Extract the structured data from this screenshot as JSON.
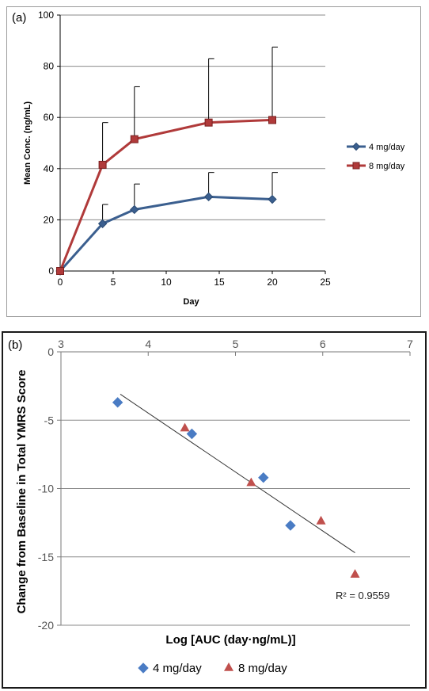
{
  "chart_data": [
    {
      "type": "line",
      "panel_label": "(a)",
      "title": "",
      "xlabel": "Day",
      "ylabel": "Mean Conc. (ng/mL)",
      "xlim": [
        0,
        25
      ],
      "ylim": [
        0,
        100
      ],
      "xticks": [
        "0",
        "5",
        "10",
        "15",
        "20",
        "25"
      ],
      "yticks": [
        "0",
        "20",
        "40",
        "60",
        "80",
        "100"
      ],
      "grid": "horizontal",
      "legend_position": "right",
      "series": [
        {
          "name": "4 mg/day",
          "marker": "diamond",
          "color": "#3b5f8f",
          "x": [
            0,
            4,
            7,
            14,
            20
          ],
          "y": [
            0,
            18.5,
            24,
            29,
            28
          ],
          "error_upper": [
            0,
            26,
            34,
            38.5,
            38.5
          ]
        },
        {
          "name": "8 mg/day",
          "marker": "square",
          "color": "#b03a3a",
          "x": [
            0,
            4,
            7,
            14,
            20
          ],
          "y": [
            0,
            41.5,
            51.5,
            58,
            59
          ],
          "error_upper": [
            0,
            58,
            72,
            83,
            87.5
          ]
        }
      ]
    },
    {
      "type": "scatter",
      "panel_label": "(b)",
      "title": "",
      "xlabel": "Log [AUC (day·ng/mL)]",
      "ylabel": "Change from Baseline in Total YMRS Score",
      "xlim": [
        3,
        7
      ],
      "ylim": [
        -20,
        0
      ],
      "xticks": [
        "3",
        "4",
        "5",
        "6",
        "7"
      ],
      "yticks": [
        "0",
        "-5",
        "-10",
        "-15",
        "-20"
      ],
      "grid": "horizontal",
      "legend_position": "bottom",
      "x_axis_position": "top",
      "annotation": "R² = 0.9559",
      "trendline": {
        "x": [
          3.68,
          6.37
        ],
        "y": [
          -3.1,
          -14.7
        ]
      },
      "series": [
        {
          "name": "4 mg/day",
          "marker": "diamond",
          "color": "#4a7cc4",
          "x": [
            3.65,
            4.5,
            5.32,
            5.63
          ],
          "y": [
            -3.7,
            -6.0,
            -9.2,
            -12.7
          ]
        },
        {
          "name": "8 mg/day",
          "marker": "triangle",
          "color": "#c0504d",
          "x": [
            4.42,
            5.18,
            5.98,
            6.37
          ],
          "y": [
            -5.6,
            -9.6,
            -12.4,
            -16.3
          ]
        }
      ]
    }
  ]
}
